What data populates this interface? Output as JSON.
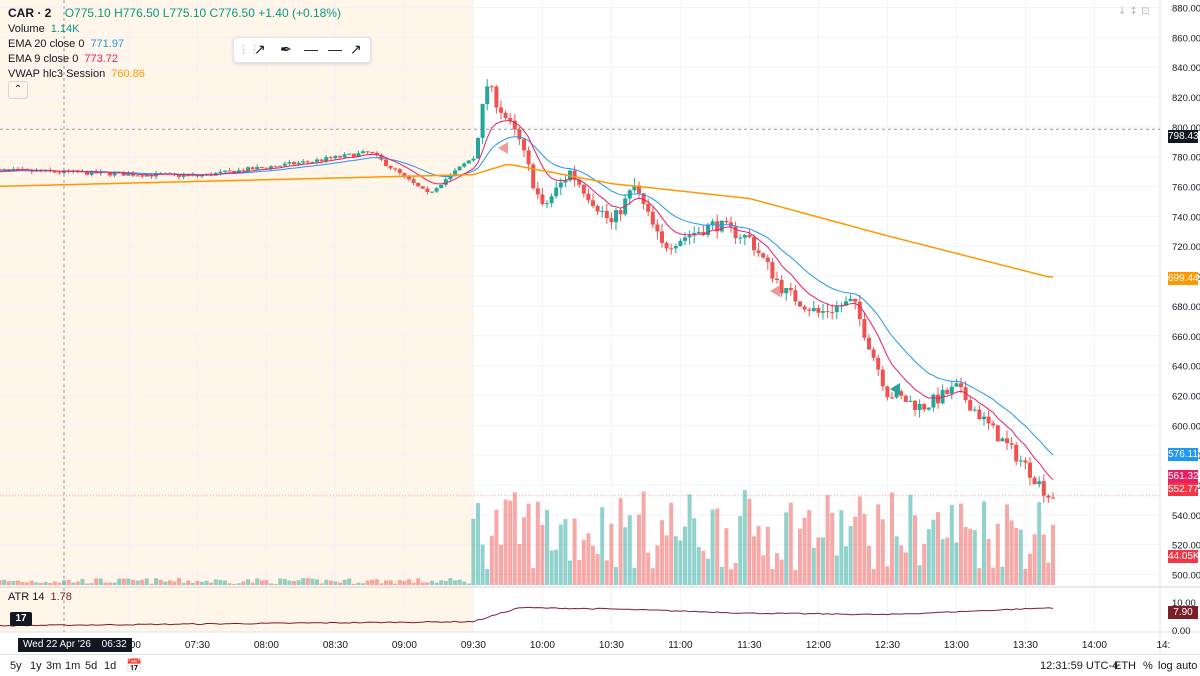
{
  "symbol": {
    "name": "CAR · 2",
    "open": "O775.10",
    "high": "H776.50",
    "low": "L775.10",
    "close": "C776.50",
    "change": "+1.40 (+0.18%)"
  },
  "legend": {
    "volume": {
      "label": "Volume",
      "value": "1.14K"
    },
    "ema20": {
      "label": "EMA 20 close 0",
      "value": "771.97",
      "color": "#2196f3"
    },
    "ema9": {
      "label": "EMA 9 close 0",
      "value": "773.72",
      "color": "#e91e63"
    },
    "vwap": {
      "label": "VWAP hlc3 Session",
      "value": "760.86",
      "color": "#ff9800"
    },
    "atr": {
      "label": "ATR 14",
      "value": "1.78"
    }
  },
  "toolbar_icons": [
    "grip-icon",
    "trend-line-icon",
    "brush-icon",
    "horizontal-line-icon",
    "horizontal-ray-icon",
    "line-icon"
  ],
  "price_axis": {
    "ticks": [
      "880.00",
      "860.00",
      "840.00",
      "820.00",
      "800.00",
      "780.00",
      "760.00",
      "740.00",
      "720.00",
      "700.00",
      "680.00",
      "660.00",
      "640.00",
      "620.00",
      "600.00",
      "580.00",
      "560.00",
      "540.00",
      "520.00",
      "500.00"
    ]
  },
  "atr_axis": {
    "ticks": [
      "10.00",
      "0.00"
    ]
  },
  "price_labels": {
    "crosshair": "798.43",
    "vwap": "699.44",
    "ema20": "576.11",
    "ema9": "561.32",
    "last": "552.77",
    "volume": "44.05K",
    "atr": "7.90"
  },
  "time_axis": {
    "date_label": "Wed 22 Apr '26",
    "time_label": "06:32",
    "ticks": [
      "07:00",
      "07:30",
      "08:00",
      "08:30",
      "09:00",
      "09:30",
      "10:00",
      "10:30",
      "11:00",
      "11:30",
      "12:00",
      "12:30",
      "13:00",
      "13:30",
      "14:00",
      "14:"
    ]
  },
  "bottom_bar": {
    "ranges": [
      "5y",
      "1y",
      "3m",
      "1m",
      "5d",
      "1d"
    ],
    "clock": "12:31:59 UTC-4",
    "session": "ETH",
    "percent": "%",
    "log": "log",
    "auto": "auto"
  },
  "colors": {
    "up": "#26a69a",
    "down": "#ef5350",
    "premarket_bg": "#fff5e9",
    "atr_line": "#7b1e2a"
  },
  "chart_data": {
    "type": "candlestick",
    "interval": "2 minutes",
    "y_range": [
      493,
      885
    ],
    "series_summary": [
      {
        "time": "06:00",
        "price": 771
      },
      {
        "time": "07:30",
        "price": 767
      },
      {
        "time": "08:20",
        "price": 777
      },
      {
        "time": "08:45",
        "price": 783
      },
      {
        "time": "09:10",
        "price": 755
      },
      {
        "time": "09:30",
        "price": 780
      },
      {
        "time": "09:36",
        "price": 828
      },
      {
        "time": "09:50",
        "price": 790
      },
      {
        "time": "10:00",
        "price": 745
      },
      {
        "time": "10:12",
        "price": 770
      },
      {
        "time": "10:30",
        "price": 735
      },
      {
        "time": "10:40",
        "price": 760
      },
      {
        "time": "10:52",
        "price": 720
      },
      {
        "time": "11:15",
        "price": 735
      },
      {
        "time": "11:30",
        "price": 725
      },
      {
        "time": "11:45",
        "price": 690
      },
      {
        "time": "12:00",
        "price": 675
      },
      {
        "time": "12:15",
        "price": 683
      },
      {
        "time": "12:30",
        "price": 622
      },
      {
        "time": "12:45",
        "price": 612
      },
      {
        "time": "13:00",
        "price": 625
      },
      {
        "time": "13:15",
        "price": 598
      },
      {
        "time": "13:30",
        "price": 573
      },
      {
        "time": "13:40",
        "price": 553
      }
    ],
    "vwap_summary": [
      {
        "time": "06:00",
        "value": 760
      },
      {
        "time": "09:30",
        "value": 768
      },
      {
        "time": "09:45",
        "value": 775
      },
      {
        "time": "10:30",
        "value": 762
      },
      {
        "time": "11:30",
        "value": 752
      },
      {
        "time": "12:30",
        "value": 727
      },
      {
        "time": "13:40",
        "value": 699.44
      }
    ],
    "atr_summary": [
      {
        "time": "06:00",
        "value": 1.5
      },
      {
        "time": "09:30",
        "value": 3
      },
      {
        "time": "09:50",
        "value": 8
      },
      {
        "time": "10:30",
        "value": 7.5
      },
      {
        "time": "11:30",
        "value": 6
      },
      {
        "time": "12:30",
        "value": 5.5
      },
      {
        "time": "13:40",
        "value": 7.9
      }
    ]
  }
}
